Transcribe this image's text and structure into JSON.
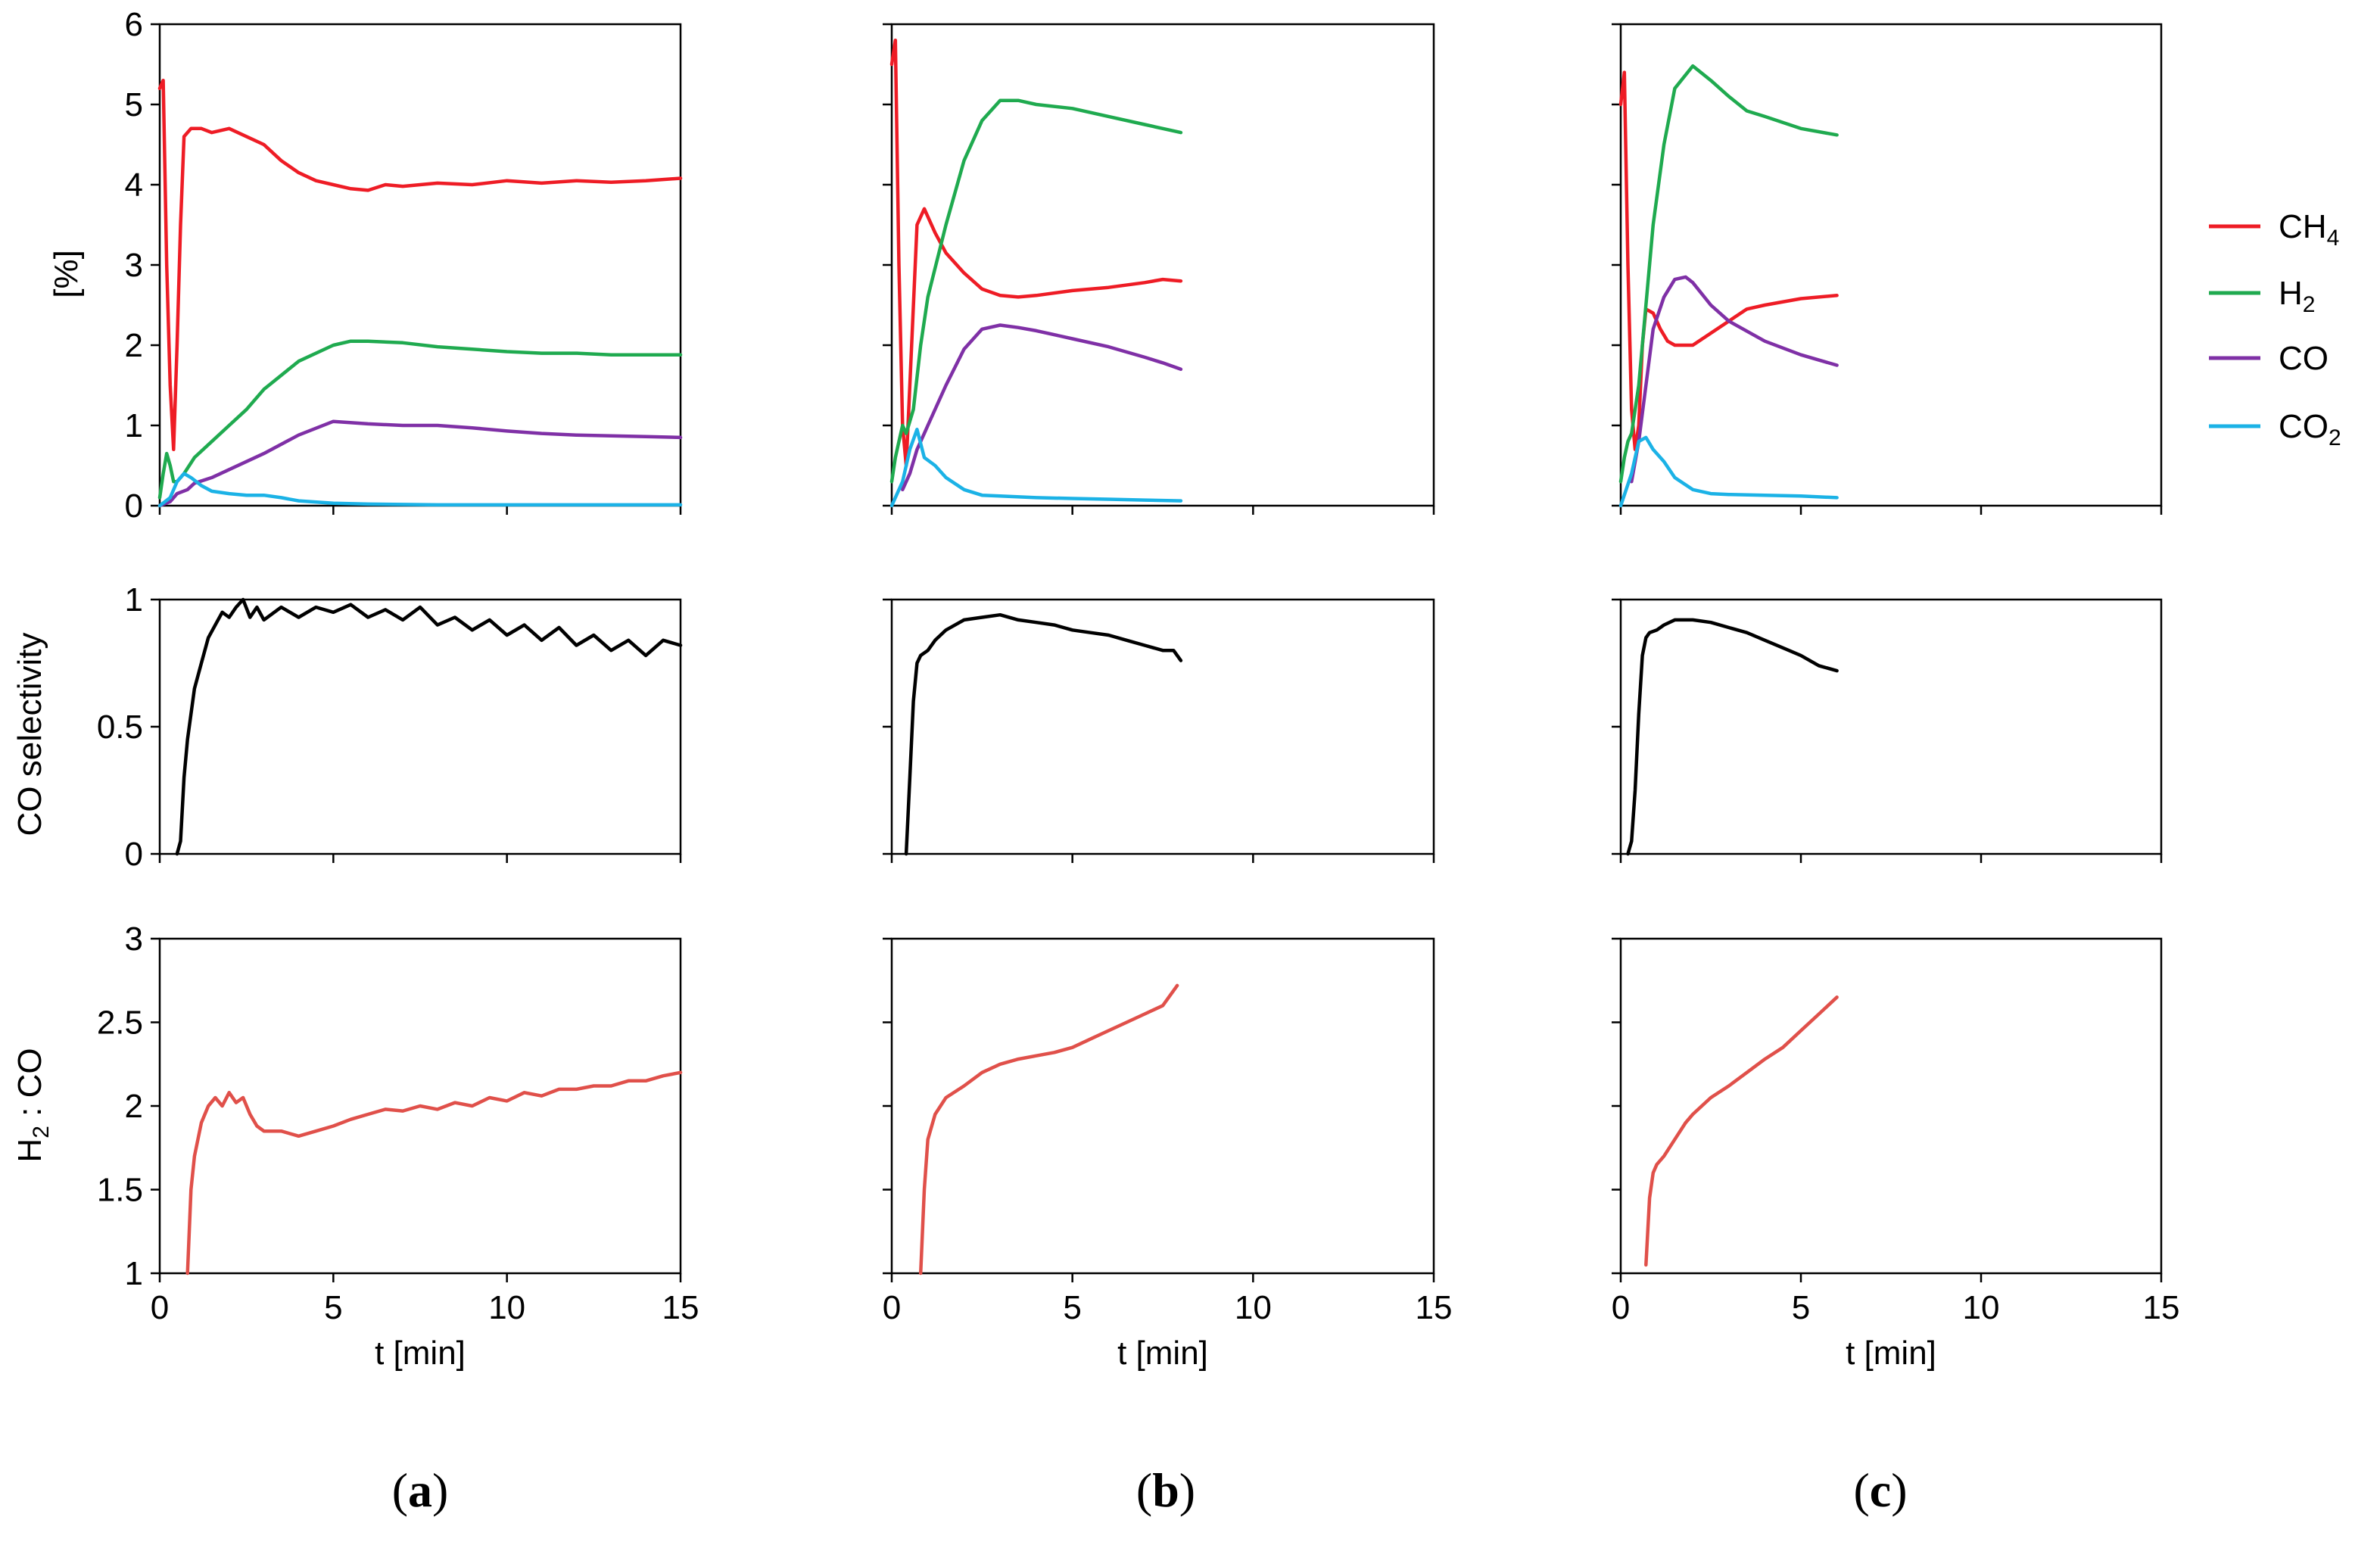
{
  "colors": {
    "ch4": "#ee1c25",
    "h2": "#1faa4f",
    "co": "#7f30a6",
    "co2": "#1bb2e6",
    "selectivity": "#000000",
    "ratio": "#e0504a"
  },
  "legend": [
    {
      "key": "ch4",
      "main": "CH",
      "sub": "4"
    },
    {
      "key": "h2",
      "main": "H",
      "sub": "2"
    },
    {
      "key": "co",
      "main": "CO",
      "sub": ""
    },
    {
      "key": "co2",
      "main": "CO",
      "sub": "2"
    }
  ],
  "axes": {
    "x_label": "t [min]",
    "x_ticks": [
      "0",
      "5",
      "10",
      "15"
    ],
    "top_y_label": "[%]",
    "top_y_ticks": [
      "0",
      "1",
      "2",
      "3",
      "4",
      "5",
      "6"
    ],
    "mid_y_label": "CO selectivity",
    "mid_y_ticks": [
      "0",
      "0.5",
      "1"
    ],
    "bot_y_label_main": "H",
    "bot_y_label_sub": "2",
    "bot_y_label_rest": " : CO",
    "bot_y_ticks": [
      "1",
      "1.5",
      "2",
      "2.5",
      "3"
    ]
  },
  "panels": [
    {
      "open": "(",
      "letter": "a",
      "close": ")"
    },
    {
      "open": "(",
      "letter": "b",
      "close": ")"
    },
    {
      "open": "(",
      "letter": "c",
      "close": ")"
    }
  ],
  "chart_data": [
    {
      "type": "line",
      "panel": "a",
      "row": "gas_concentrations",
      "ylabel": "[%]",
      "xlabel": "",
      "xlim": [
        0,
        15
      ],
      "ylim": [
        0,
        6
      ],
      "series": [
        {
          "name": "CH4",
          "key": "ch4",
          "x": [
            0,
            0.1,
            0.2,
            0.3,
            0.4,
            0.5,
            0.6,
            0.7,
            0.9,
            1.2,
            1.5,
            2,
            2.5,
            3,
            3.5,
            4,
            4.5,
            5,
            5.5,
            6,
            6.5,
            7,
            8,
            9,
            10,
            11,
            12,
            13,
            14,
            15
          ],
          "y": [
            5.2,
            5.3,
            3.0,
            1.5,
            0.7,
            2.0,
            3.5,
            4.6,
            4.7,
            4.7,
            4.65,
            4.7,
            4.6,
            4.5,
            4.3,
            4.15,
            4.05,
            4.0,
            3.95,
            3.93,
            4.0,
            3.98,
            4.02,
            4.0,
            4.05,
            4.02,
            4.05,
            4.03,
            4.05,
            4.08
          ]
        },
        {
          "name": "H2",
          "key": "h2",
          "x": [
            0,
            0.1,
            0.2,
            0.3,
            0.4,
            0.5,
            0.7,
            1,
            1.5,
            2,
            2.5,
            3,
            4,
            5,
            5.5,
            6,
            7,
            8,
            9,
            10,
            11,
            12,
            13,
            14,
            15
          ],
          "y": [
            0.1,
            0.4,
            0.65,
            0.5,
            0.3,
            0.3,
            0.4,
            0.6,
            0.8,
            1.0,
            1.2,
            1.45,
            1.8,
            2.0,
            2.05,
            2.05,
            2.03,
            1.98,
            1.95,
            1.92,
            1.9,
            1.9,
            1.88,
            1.88,
            1.88
          ]
        },
        {
          "name": "CO",
          "key": "co",
          "x": [
            0,
            0.3,
            0.5,
            0.8,
            1,
            1.5,
            2,
            3,
            4,
            5,
            6,
            7,
            8,
            9,
            10,
            11,
            12,
            13,
            14,
            15
          ],
          "y": [
            0,
            0.05,
            0.15,
            0.2,
            0.28,
            0.35,
            0.45,
            0.65,
            0.88,
            1.05,
            1.02,
            1.0,
            1.0,
            0.97,
            0.93,
            0.9,
            0.88,
            0.87,
            0.86,
            0.85
          ]
        },
        {
          "name": "CO2",
          "key": "co2",
          "x": [
            0,
            0.3,
            0.5,
            0.7,
            0.9,
            1.2,
            1.5,
            2,
            2.5,
            3,
            3.5,
            4,
            5,
            6,
            8,
            10,
            12,
            15
          ],
          "y": [
            0,
            0.1,
            0.3,
            0.4,
            0.35,
            0.25,
            0.18,
            0.15,
            0.13,
            0.13,
            0.1,
            0.06,
            0.03,
            0.02,
            0.01,
            0.01,
            0.01,
            0.01
          ]
        }
      ]
    },
    {
      "type": "line",
      "panel": "a",
      "row": "co_selectivity",
      "ylabel": "CO selectivity",
      "xlabel": "",
      "xlim": [
        0,
        15
      ],
      "ylim": [
        0,
        1
      ],
      "series": [
        {
          "name": "CO selectivity",
          "key": "selectivity",
          "x": [
            0.5,
            0.6,
            0.7,
            0.8,
            0.9,
            1.0,
            1.2,
            1.4,
            1.6,
            1.8,
            2.0,
            2.2,
            2.4,
            2.6,
            2.8,
            3.0,
            3.5,
            4.0,
            4.5,
            5.0,
            5.5,
            6.0,
            6.5,
            7.0,
            7.5,
            8.0,
            8.5,
            9.0,
            9.5,
            10,
            10.5,
            11,
            11.5,
            12,
            12.5,
            13,
            13.5,
            14,
            14.5,
            15
          ],
          "y": [
            0,
            0.05,
            0.3,
            0.45,
            0.55,
            0.65,
            0.75,
            0.85,
            0.9,
            0.95,
            0.93,
            0.97,
            1.0,
            0.93,
            0.97,
            0.92,
            0.97,
            0.93,
            0.97,
            0.95,
            0.98,
            0.93,
            0.96,
            0.92,
            0.97,
            0.9,
            0.93,
            0.88,
            0.92,
            0.86,
            0.9,
            0.84,
            0.89,
            0.82,
            0.86,
            0.8,
            0.84,
            0.78,
            0.84,
            0.82
          ]
        }
      ]
    },
    {
      "type": "line",
      "panel": "a",
      "row": "h2_co_ratio",
      "ylabel": "H2 : CO",
      "xlabel": "t [min]",
      "xlim": [
        0,
        15
      ],
      "ylim": [
        1,
        3
      ],
      "series": [
        {
          "name": "H2 : CO",
          "key": "ratio",
          "x": [
            0.8,
            0.9,
            1.0,
            1.2,
            1.4,
            1.6,
            1.8,
            2.0,
            2.2,
            2.4,
            2.6,
            2.8,
            3.0,
            3.5,
            4.0,
            4.5,
            5.0,
            5.5,
            6.0,
            6.5,
            7.0,
            7.5,
            8.0,
            8.5,
            9.0,
            9.5,
            10,
            10.5,
            11,
            11.5,
            12,
            12.5,
            13,
            13.5,
            14,
            14.5,
            15
          ],
          "y": [
            1.0,
            1.5,
            1.7,
            1.9,
            2.0,
            2.05,
            2.0,
            2.08,
            2.02,
            2.05,
            1.95,
            1.88,
            1.85,
            1.85,
            1.82,
            1.85,
            1.88,
            1.92,
            1.95,
            1.98,
            1.97,
            2.0,
            1.98,
            2.02,
            2.0,
            2.05,
            2.03,
            2.08,
            2.06,
            2.1,
            2.1,
            2.12,
            2.12,
            2.15,
            2.15,
            2.18,
            2.2
          ]
        }
      ]
    },
    {
      "type": "line",
      "panel": "b",
      "row": "gas_concentrations",
      "ylabel": "",
      "xlabel": "",
      "xlim": [
        0,
        15
      ],
      "ylim": [
        0,
        6
      ],
      "series": [
        {
          "name": "CH4",
          "key": "ch4",
          "x": [
            0,
            0.1,
            0.2,
            0.3,
            0.4,
            0.5,
            0.7,
            0.9,
            1.2,
            1.5,
            2,
            2.5,
            3,
            3.5,
            4,
            5,
            6,
            7,
            7.5,
            8
          ],
          "y": [
            5.5,
            5.8,
            3.0,
            1.0,
            0.5,
            1.5,
            3.5,
            3.7,
            3.4,
            3.15,
            2.9,
            2.7,
            2.62,
            2.6,
            2.62,
            2.68,
            2.72,
            2.78,
            2.82,
            2.8
          ]
        },
        {
          "name": "H2",
          "key": "h2",
          "x": [
            0,
            0.1,
            0.2,
            0.3,
            0.4,
            0.6,
            0.8,
            1,
            1.5,
            2,
            2.5,
            3,
            3.5,
            4,
            5,
            6,
            7,
            7.5,
            8
          ],
          "y": [
            0.3,
            0.6,
            0.8,
            1.0,
            0.9,
            1.2,
            2.0,
            2.6,
            3.5,
            4.3,
            4.8,
            5.05,
            5.05,
            5.0,
            4.95,
            4.85,
            4.75,
            4.7,
            4.65
          ]
        },
        {
          "name": "CO",
          "key": "co",
          "x": [
            0.3,
            0.5,
            0.7,
            0.9,
            1,
            1.5,
            2,
            2.5,
            3,
            3.5,
            4,
            5,
            6,
            7,
            7.5,
            8
          ],
          "y": [
            0.2,
            0.4,
            0.7,
            0.9,
            1.0,
            1.5,
            1.95,
            2.2,
            2.25,
            2.22,
            2.18,
            2.08,
            1.98,
            1.85,
            1.78,
            1.7
          ]
        },
        {
          "name": "CO2",
          "key": "co2",
          "x": [
            0,
            0.3,
            0.5,
            0.7,
            0.9,
            1.2,
            1.5,
            2,
            2.5,
            3,
            4,
            5,
            6,
            7,
            8
          ],
          "y": [
            0,
            0.3,
            0.7,
            0.95,
            0.6,
            0.5,
            0.35,
            0.2,
            0.13,
            0.12,
            0.1,
            0.09,
            0.08,
            0.07,
            0.06
          ]
        }
      ]
    },
    {
      "type": "line",
      "panel": "b",
      "row": "co_selectivity",
      "ylabel": "",
      "xlabel": "",
      "xlim": [
        0,
        15
      ],
      "ylim": [
        0,
        1
      ],
      "series": [
        {
          "name": "CO selectivity",
          "key": "selectivity",
          "x": [
            0.4,
            0.5,
            0.6,
            0.7,
            0.8,
            1.0,
            1.2,
            1.5,
            2,
            2.5,
            3,
            3.5,
            4,
            4.5,
            5,
            5.5,
            6,
            6.5,
            7,
            7.5,
            7.8,
            8.0
          ],
          "y": [
            0,
            0.3,
            0.6,
            0.75,
            0.78,
            0.8,
            0.84,
            0.88,
            0.92,
            0.93,
            0.94,
            0.92,
            0.91,
            0.9,
            0.88,
            0.87,
            0.86,
            0.84,
            0.82,
            0.8,
            0.8,
            0.76
          ]
        }
      ]
    },
    {
      "type": "line",
      "panel": "b",
      "row": "h2_co_ratio",
      "ylabel": "",
      "xlabel": "t [min]",
      "xlim": [
        0,
        15
      ],
      "ylim": [
        1,
        3
      ],
      "series": [
        {
          "name": "H2 : CO",
          "key": "ratio",
          "x": [
            0.8,
            0.9,
            1.0,
            1.2,
            1.5,
            2,
            2.5,
            3,
            3.5,
            4,
            4.5,
            5,
            5.5,
            6,
            6.5,
            7,
            7.5,
            7.9
          ],
          "y": [
            1.0,
            1.5,
            1.8,
            1.95,
            2.05,
            2.12,
            2.2,
            2.25,
            2.28,
            2.3,
            2.32,
            2.35,
            2.4,
            2.45,
            2.5,
            2.55,
            2.6,
            2.72
          ]
        }
      ]
    },
    {
      "type": "line",
      "panel": "c",
      "row": "gas_concentrations",
      "ylabel": "",
      "xlabel": "",
      "xlim": [
        0,
        15
      ],
      "ylim": [
        0,
        6
      ],
      "series": [
        {
          "name": "CH4",
          "key": "ch4",
          "x": [
            0,
            0.1,
            0.2,
            0.3,
            0.4,
            0.5,
            0.6,
            0.7,
            0.9,
            1.1,
            1.3,
            1.5,
            2,
            2.5,
            3,
            3.5,
            4,
            5,
            6
          ],
          "y": [
            5.0,
            5.4,
            3.0,
            1.2,
            0.7,
            1.0,
            2.0,
            2.45,
            2.4,
            2.2,
            2.05,
            2.0,
            2.0,
            2.15,
            2.3,
            2.45,
            2.5,
            2.58,
            2.62
          ]
        },
        {
          "name": "H2",
          "key": "h2",
          "x": [
            0,
            0.1,
            0.2,
            0.3,
            0.5,
            0.7,
            0.9,
            1.2,
            1.5,
            2,
            2.5,
            3,
            3.5,
            4,
            5,
            6
          ],
          "y": [
            0.3,
            0.6,
            0.8,
            0.9,
            1.5,
            2.5,
            3.5,
            4.5,
            5.2,
            5.48,
            5.3,
            5.1,
            4.92,
            4.85,
            4.7,
            4.62
          ]
        },
        {
          "name": "CO",
          "key": "co",
          "x": [
            0.3,
            0.5,
            0.7,
            0.9,
            1.2,
            1.5,
            1.8,
            2,
            2.5,
            3,
            4,
            5,
            6
          ],
          "y": [
            0.3,
            0.8,
            1.5,
            2.2,
            2.6,
            2.82,
            2.85,
            2.78,
            2.5,
            2.3,
            2.05,
            1.88,
            1.75
          ]
        },
        {
          "name": "CO2",
          "key": "co2",
          "x": [
            0,
            0.3,
            0.5,
            0.7,
            0.9,
            1.2,
            1.5,
            2,
            2.5,
            3,
            4,
            5,
            6
          ],
          "y": [
            0,
            0.4,
            0.8,
            0.85,
            0.7,
            0.55,
            0.35,
            0.2,
            0.15,
            0.14,
            0.13,
            0.12,
            0.1
          ]
        }
      ]
    },
    {
      "type": "line",
      "panel": "c",
      "row": "co_selectivity",
      "ylabel": "",
      "xlabel": "",
      "xlim": [
        0,
        15
      ],
      "ylim": [
        0,
        1
      ],
      "series": [
        {
          "name": "CO selectivity",
          "key": "selectivity",
          "x": [
            0.2,
            0.3,
            0.4,
            0.5,
            0.6,
            0.7,
            0.8,
            1.0,
            1.2,
            1.5,
            2,
            2.5,
            3,
            3.5,
            4,
            4.5,
            5,
            5.5,
            6
          ],
          "y": [
            0,
            0.05,
            0.25,
            0.55,
            0.78,
            0.85,
            0.87,
            0.88,
            0.9,
            0.92,
            0.92,
            0.91,
            0.89,
            0.87,
            0.84,
            0.81,
            0.78,
            0.74,
            0.72
          ]
        }
      ]
    },
    {
      "type": "line",
      "panel": "c",
      "row": "h2_co_ratio",
      "ylabel": "",
      "xlabel": "t [min]",
      "xlim": [
        0,
        15
      ],
      "ylim": [
        1,
        3
      ],
      "series": [
        {
          "name": "H2 : CO",
          "key": "ratio",
          "x": [
            0.7,
            0.8,
            0.9,
            1.0,
            1.2,
            1.5,
            1.8,
            2,
            2.5,
            3,
            3.5,
            4,
            4.5,
            5,
            5.5,
            6
          ],
          "y": [
            1.05,
            1.45,
            1.6,
            1.65,
            1.7,
            1.8,
            1.9,
            1.95,
            2.05,
            2.12,
            2.2,
            2.28,
            2.35,
            2.45,
            2.55,
            2.65
          ]
        }
      ]
    }
  ]
}
